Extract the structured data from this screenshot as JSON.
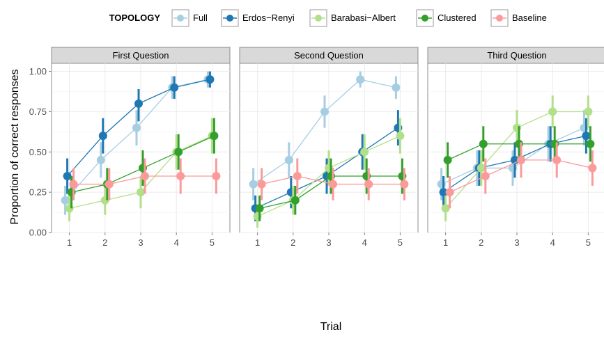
{
  "legend": {
    "title": "TOPOLOGY",
    "items": [
      "Full",
      "Erdos−Renyi",
      "Barabasi−Albert",
      "Clustered",
      "Baseline"
    ]
  },
  "axes": {
    "xlabel": "Trial",
    "ylabel": "Proportion of correct responses",
    "xticks": [
      "1",
      "2",
      "3",
      "4",
      "5"
    ],
    "yticks": [
      "0.00",
      "0.25",
      "0.50",
      "0.75",
      "1.00"
    ]
  },
  "colors": {
    "Full": "#a6cee3",
    "Erdos−Renyi": "#1f78b4",
    "Barabasi−Albert": "#b2df8a",
    "Clustered": "#33a02c",
    "Baseline": "#fb9a99",
    "strip_bg": "#d9d9d9",
    "grid": "#ebebeb"
  },
  "chart_data": [
    {
      "type": "line",
      "title": "First Question",
      "x": [
        1,
        2,
        3,
        4,
        5
      ],
      "ylim": [
        0,
        1.05
      ],
      "series": [
        {
          "name": "Full",
          "values": [
            0.2,
            0.45,
            0.65,
            0.9,
            0.95
          ],
          "lower": [
            0.11,
            0.34,
            0.54,
            0.83,
            0.9
          ],
          "upper": [
            0.29,
            0.56,
            0.76,
            0.97,
            1.0
          ]
        },
        {
          "name": "Erdos−Renyi",
          "values": [
            0.35,
            0.6,
            0.8,
            0.9,
            0.95
          ],
          "lower": [
            0.24,
            0.49,
            0.69,
            0.83,
            0.9
          ],
          "upper": [
            0.46,
            0.71,
            0.89,
            0.97,
            1.0
          ]
        },
        {
          "name": "Barabasi−Albert",
          "values": [
            0.15,
            0.2,
            0.25,
            0.5,
            0.6
          ],
          "lower": [
            0.07,
            0.11,
            0.15,
            0.39,
            0.49
          ],
          "upper": [
            0.23,
            0.29,
            0.35,
            0.61,
            0.71
          ]
        },
        {
          "name": "Clustered",
          "values": [
            0.25,
            0.3,
            0.4,
            0.5,
            0.6
          ],
          "lower": [
            0.15,
            0.2,
            0.29,
            0.39,
            0.49
          ],
          "upper": [
            0.35,
            0.4,
            0.51,
            0.61,
            0.71
          ]
        },
        {
          "name": "Baseline",
          "values": [
            0.3,
            0.3,
            0.35,
            0.35,
            0.35
          ],
          "lower": [
            0.2,
            0.2,
            0.24,
            0.24,
            0.24
          ],
          "upper": [
            0.4,
            0.4,
            0.46,
            0.46,
            0.46
          ]
        }
      ]
    },
    {
      "type": "line",
      "title": "Second Question",
      "x": [
        1,
        2,
        3,
        4,
        5
      ],
      "ylim": [
        0,
        1.05
      ],
      "series": [
        {
          "name": "Full",
          "values": [
            0.3,
            0.45,
            0.75,
            0.95,
            0.9
          ],
          "lower": [
            0.2,
            0.34,
            0.65,
            0.9,
            0.83
          ],
          "upper": [
            0.4,
            0.56,
            0.85,
            1.0,
            0.97
          ]
        },
        {
          "name": "Erdos−Renyi",
          "values": [
            0.15,
            0.25,
            0.35,
            0.5,
            0.65
          ],
          "lower": [
            0.07,
            0.15,
            0.24,
            0.39,
            0.54
          ],
          "upper": [
            0.23,
            0.35,
            0.46,
            0.61,
            0.76
          ]
        },
        {
          "name": "Barabasi−Albert",
          "values": [
            0.1,
            0.2,
            0.4,
            0.5,
            0.6
          ],
          "lower": [
            0.03,
            0.11,
            0.29,
            0.39,
            0.49
          ],
          "upper": [
            0.17,
            0.29,
            0.51,
            0.61,
            0.71
          ]
        },
        {
          "name": "Clustered",
          "values": [
            0.15,
            0.2,
            0.35,
            0.35,
            0.35
          ],
          "lower": [
            0.07,
            0.11,
            0.24,
            0.24,
            0.24
          ],
          "upper": [
            0.23,
            0.29,
            0.46,
            0.46,
            0.46
          ]
        },
        {
          "name": "Baseline",
          "values": [
            0.3,
            0.35,
            0.3,
            0.3,
            0.3
          ],
          "lower": [
            0.2,
            0.24,
            0.2,
            0.2,
            0.2
          ],
          "upper": [
            0.4,
            0.46,
            0.4,
            0.4,
            0.4
          ]
        }
      ]
    },
    {
      "type": "line",
      "title": "Third Question",
      "x": [
        1,
        2,
        3,
        4,
        5
      ],
      "ylim": [
        0,
        1.05
      ],
      "series": [
        {
          "name": "Full",
          "values": [
            0.3,
            0.4,
            0.4,
            0.55,
            0.65
          ],
          "lower": [
            0.2,
            0.29,
            0.29,
            0.44,
            0.54
          ],
          "upper": [
            0.4,
            0.51,
            0.51,
            0.66,
            0.76
          ]
        },
        {
          "name": "Erdos−Renyi",
          "values": [
            0.25,
            0.4,
            0.45,
            0.55,
            0.6
          ],
          "lower": [
            0.15,
            0.29,
            0.34,
            0.44,
            0.49
          ],
          "upper": [
            0.35,
            0.51,
            0.56,
            0.66,
            0.71
          ]
        },
        {
          "name": "Barabasi−Albert",
          "values": [
            0.15,
            0.4,
            0.65,
            0.75,
            0.75
          ],
          "lower": [
            0.07,
            0.29,
            0.54,
            0.65,
            0.65
          ],
          "upper": [
            0.23,
            0.51,
            0.76,
            0.85,
            0.85
          ]
        },
        {
          "name": "Clustered",
          "values": [
            0.45,
            0.55,
            0.55,
            0.55,
            0.55
          ],
          "lower": [
            0.34,
            0.44,
            0.44,
            0.44,
            0.44
          ],
          "upper": [
            0.56,
            0.66,
            0.66,
            0.66,
            0.66
          ]
        },
        {
          "name": "Baseline",
          "values": [
            0.25,
            0.35,
            0.45,
            0.45,
            0.4
          ],
          "lower": [
            0.15,
            0.24,
            0.34,
            0.34,
            0.29
          ],
          "upper": [
            0.35,
            0.46,
            0.56,
            0.56,
            0.51
          ]
        }
      ]
    }
  ]
}
